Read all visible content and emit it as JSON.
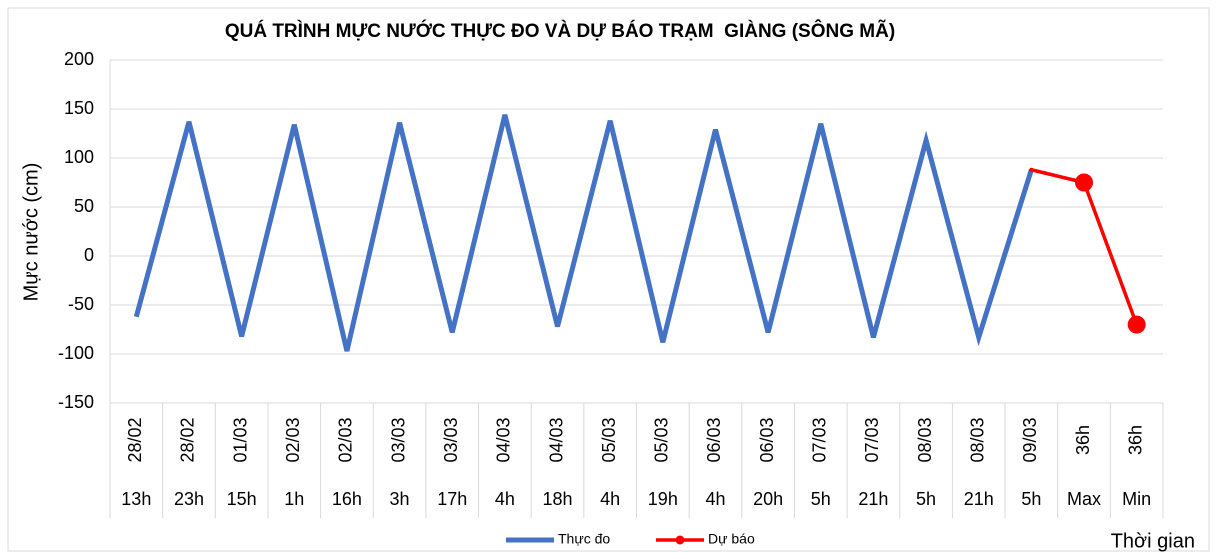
{
  "chart_data": {
    "type": "line",
    "title": "QUÁ TRÌNH MỰC NƯỚC THỰC ĐO VÀ DỰ BÁO TRẠM  GIÀNG (SÔNG MÃ)",
    "y_label": "Mực nước (cm)",
    "x_label": "Thời gian",
    "categories": [
      "28/02",
      "28/02",
      "01/03",
      "02/03",
      "02/03",
      "03/03",
      "03/03",
      "04/03",
      "04/03",
      "05/03",
      "05/03",
      "06/03",
      "06/03",
      "07/03",
      "07/03",
      "08/03",
      "08/03",
      "09/03",
      "36h",
      "36h"
    ],
    "subcategories": [
      "13h",
      "23h",
      "15h",
      "1h",
      "16h",
      "3h",
      "17h",
      "4h",
      "18h",
      "4h",
      "19h",
      "4h",
      "20h",
      "5h",
      "21h",
      "5h",
      "21h",
      "5h",
      "Max",
      "Min"
    ],
    "series": [
      {
        "name": "Thực đo",
        "color": "#4472c4",
        "values": [
          -62,
          137,
          -82,
          134,
          -97,
          136,
          -78,
          144,
          -72,
          138,
          -88,
          129,
          -78,
          135,
          -83,
          118,
          -83,
          88,
          null,
          null
        ]
      },
      {
        "name": "Dự báo",
        "color": "#ff0000",
        "values": [
          null,
          null,
          null,
          null,
          null,
          null,
          null,
          null,
          null,
          null,
          null,
          null,
          null,
          null,
          null,
          null,
          null,
          88,
          75,
          -70
        ]
      }
    ],
    "ylim": [
      -150,
      200
    ],
    "yticks": [
      -150,
      -100,
      -50,
      0,
      50,
      100,
      150,
      200
    ],
    "grid": true,
    "legend": "bottom"
  }
}
